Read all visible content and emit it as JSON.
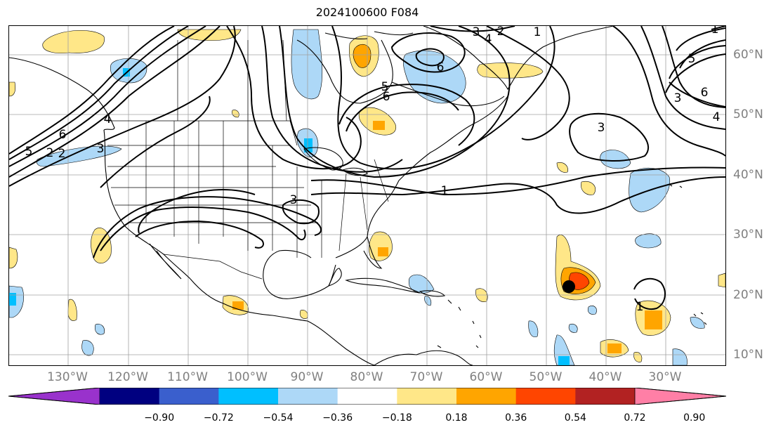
{
  "title": "2024100600 F084",
  "longitude_labels": [
    "130°W",
    "120°W",
    "110°W",
    "100°W",
    "90°W",
    "80°W",
    "70°W",
    "60°W",
    "50°W",
    "40°W",
    "30°W"
  ],
  "latitude_labels": [
    "60°N",
    "50°N",
    "40°N",
    "30°N",
    "20°N",
    "10°N"
  ],
  "colorbar": {
    "colors": [
      "#9932cc",
      "#000080",
      "#3a5fcd",
      "#00bfff",
      "#add8f7",
      "#ffffff",
      "#ffe788",
      "#ffa500",
      "#ff4500",
      "#b22222",
      "#ff7fa6"
    ],
    "tick_labels": [
      "−0.90",
      "−0.72",
      "−0.54",
      "−0.36",
      "−0.18",
      "0.18",
      "0.36",
      "0.54",
      "0.72",
      "0.90"
    ]
  },
  "contour_labels": {
    "l1": "1",
    "l2": "2",
    "l3": "3",
    "l4": "4",
    "l5": "5",
    "l6": "6",
    "l7": "3",
    "l8": "4",
    "l9": "2",
    "l10": "1",
    "l11": "6",
    "l12": "5",
    "l13": "6",
    "l14": "5",
    "l15": "3",
    "l16": "6",
    "l17": "4",
    "l18": "3",
    "l19": "1",
    "l20": "3",
    "l21": "2",
    "l22": "1"
  },
  "storm_marker": "black-dot"
}
